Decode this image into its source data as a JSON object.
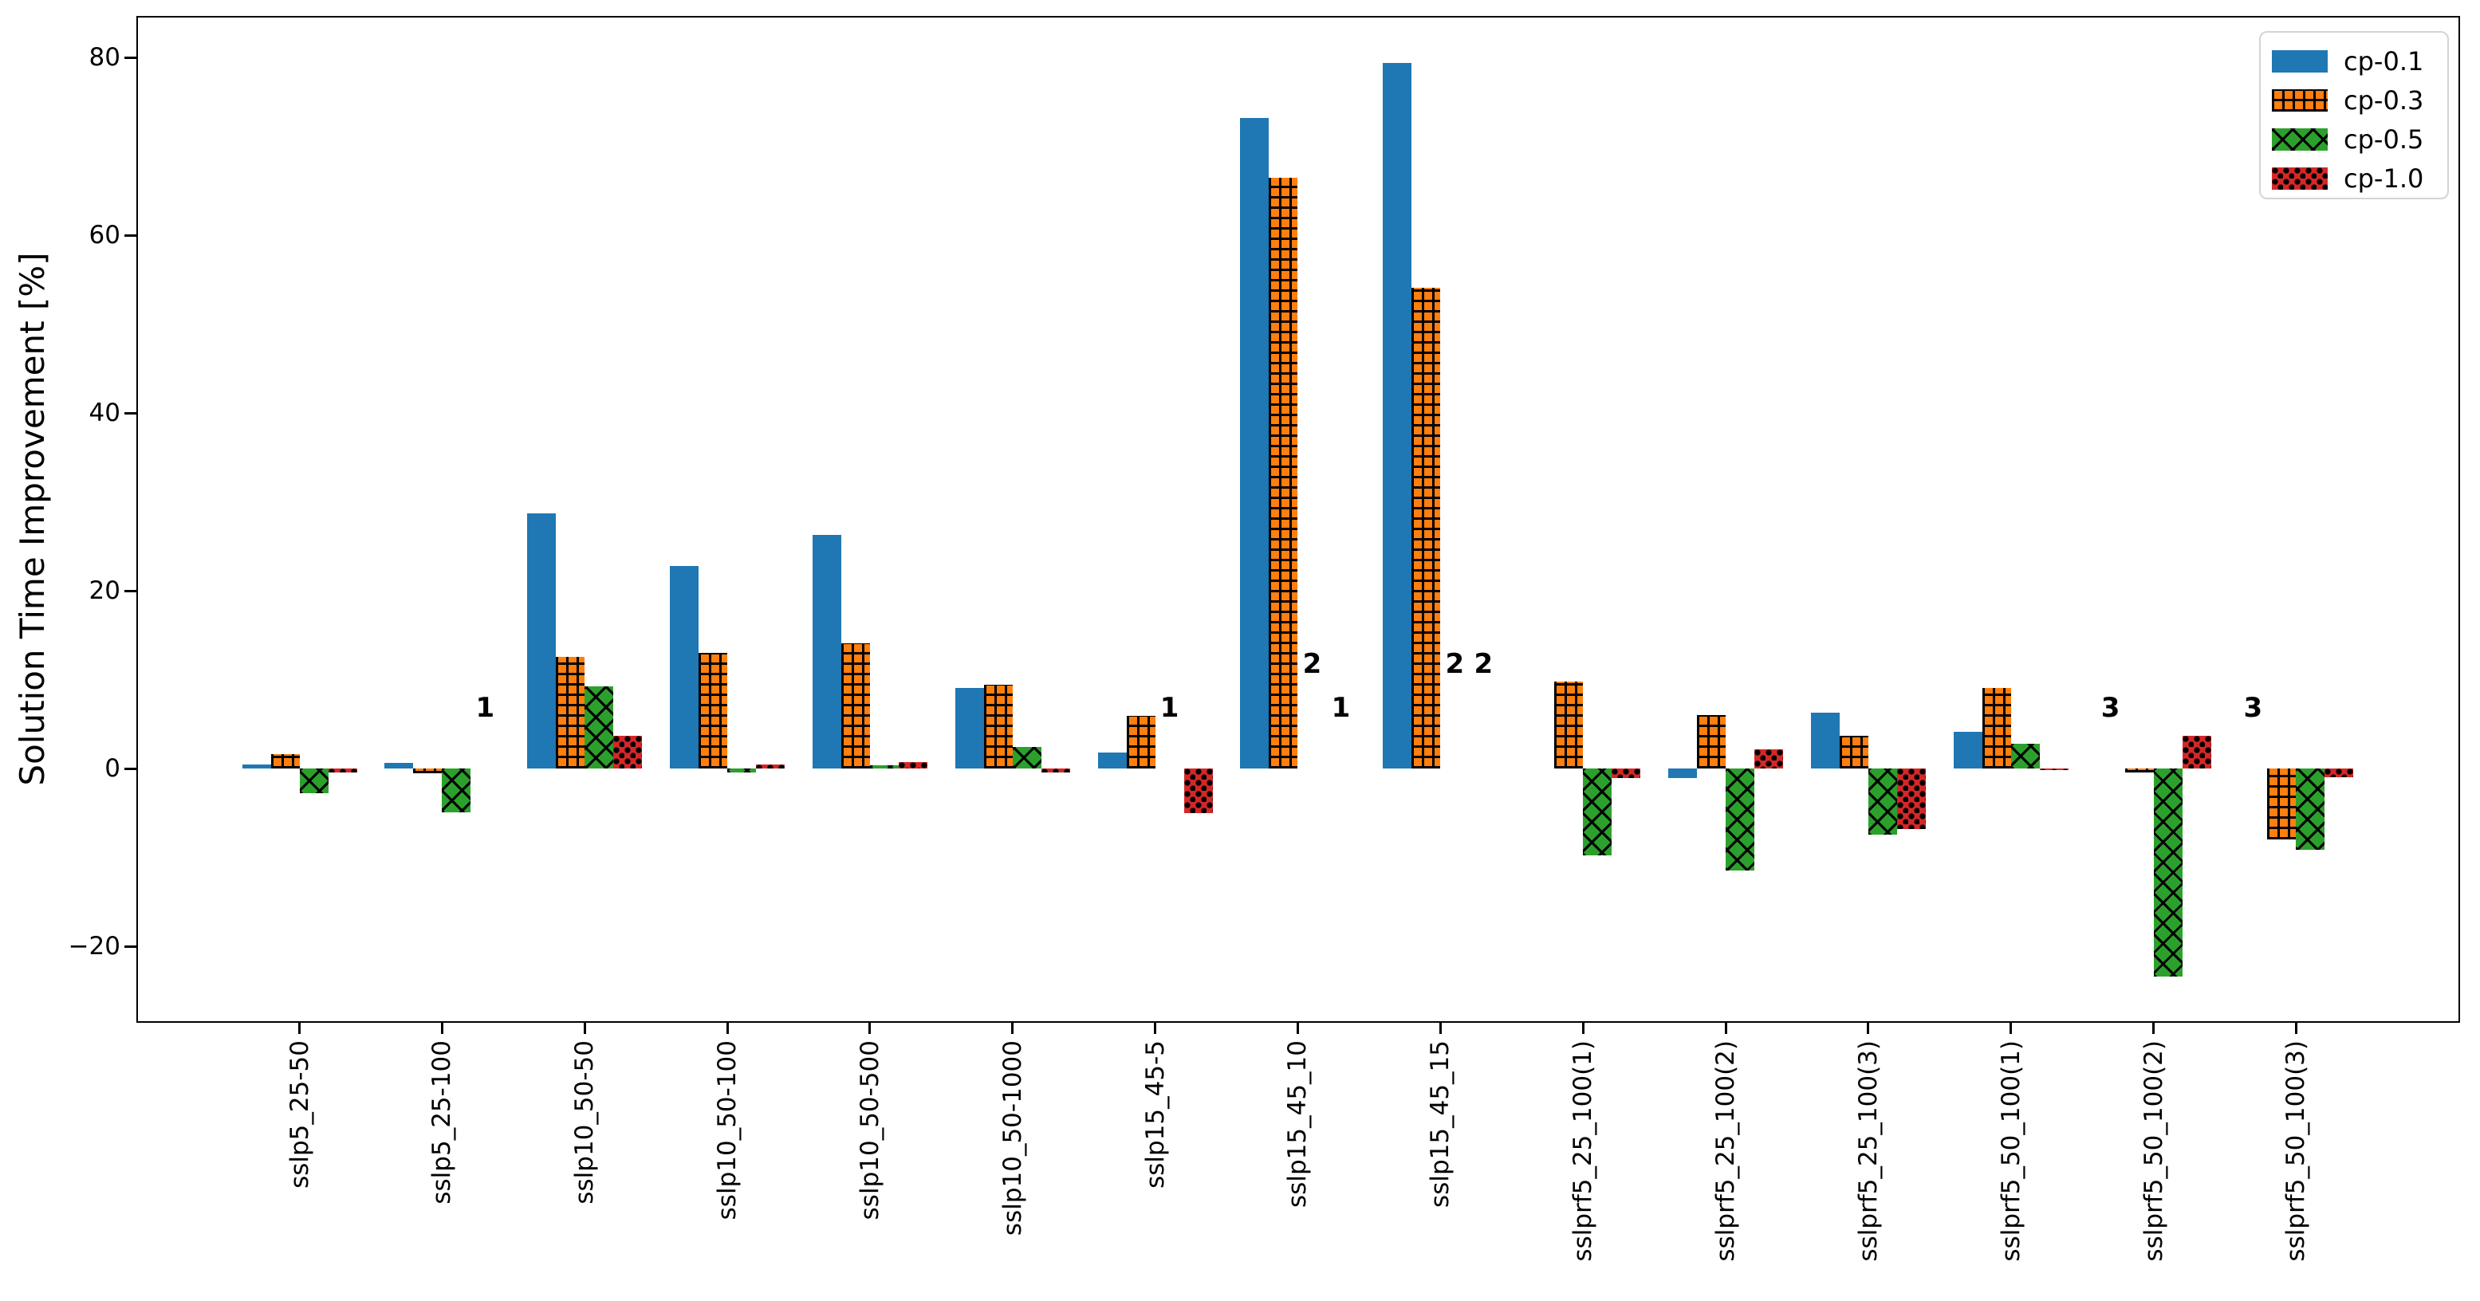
{
  "chart_data": {
    "type": "bar",
    "ylabel": "Solution Time Improvement [%]",
    "categories": [
      "sslp5_25-50",
      "sslp5_25-100",
      "sslp10_50-50",
      "sslp10_50-100",
      "sslp10_50-500",
      "sslp10_50-1000",
      "sslp15_45-5",
      "sslp15_45_10",
      "sslp15_45_15",
      "sslprf5_25_100(1)",
      "sslprf5_25_100(2)",
      "sslprf5_25_100(3)",
      "sslprf5_50_100(1)",
      "sslprf5_50_100(2)",
      "sslprf5_50_100(3)"
    ],
    "series": [
      {
        "name": "cp-0.1",
        "color": "#1f77b4",
        "hatch": "none",
        "values": [
          0.5,
          0.6,
          28.7,
          22.8,
          26.3,
          9.1,
          1.8,
          73.2,
          79.4,
          0,
          -1.1,
          6.3,
          4.1,
          null,
          null
        ]
      },
      {
        "name": "cp-0.3",
        "color": "#ff7f0e",
        "hatch": "plus",
        "values": [
          1.6,
          -0.5,
          12.6,
          13.0,
          14.1,
          9.4,
          5.9,
          66.5,
          54.1,
          9.8,
          6.0,
          3.7,
          9.1,
          -0.4,
          -8.0
        ]
      },
      {
        "name": "cp-0.5",
        "color": "#2ca02c",
        "hatch": "cross",
        "values": [
          -2.8,
          -4.9,
          9.3,
          -0.4,
          0.35,
          2.4,
          null,
          null,
          null,
          -9.8,
          -11.5,
          -7.4,
          2.8,
          -23.4,
          -9.1
        ]
      },
      {
        "name": "cp-1.0",
        "color": "#d62728",
        "hatch": "dots",
        "values": [
          -0.4,
          null,
          3.7,
          0.5,
          0.7,
          -0.4,
          -5.0,
          null,
          null,
          -1.1,
          2.2,
          -6.8,
          -0.2,
          3.7,
          -1.0
        ]
      }
    ],
    "annotations": [
      {
        "text": "1",
        "category_index": 1,
        "series_index": 3,
        "y": 5
      },
      {
        "text": "1",
        "category_index": 6,
        "series_index": 2,
        "y": 5
      },
      {
        "text": "2",
        "category_index": 7,
        "series_index": 2,
        "y": 10
      },
      {
        "text": "1",
        "category_index": 7,
        "series_index": 3,
        "y": 5
      },
      {
        "text": "2",
        "category_index": 8,
        "series_index": 2,
        "y": 10
      },
      {
        "text": "2",
        "category_index": 8,
        "series_index": 3,
        "y": 10
      },
      {
        "text": "3",
        "category_index": 13,
        "series_index": 0,
        "y": 5
      },
      {
        "text": "3",
        "category_index": 14,
        "series_index": 0,
        "y": 5
      }
    ],
    "yticks": [
      -20,
      0,
      20,
      40,
      60,
      80
    ],
    "ylim": [
      -28.6,
      84.7
    ],
    "grid": false,
    "legend": {
      "position": "upper right",
      "entries": [
        "cp-0.1",
        "cp-0.3",
        "cp-0.5",
        "cp-1.0"
      ]
    }
  }
}
